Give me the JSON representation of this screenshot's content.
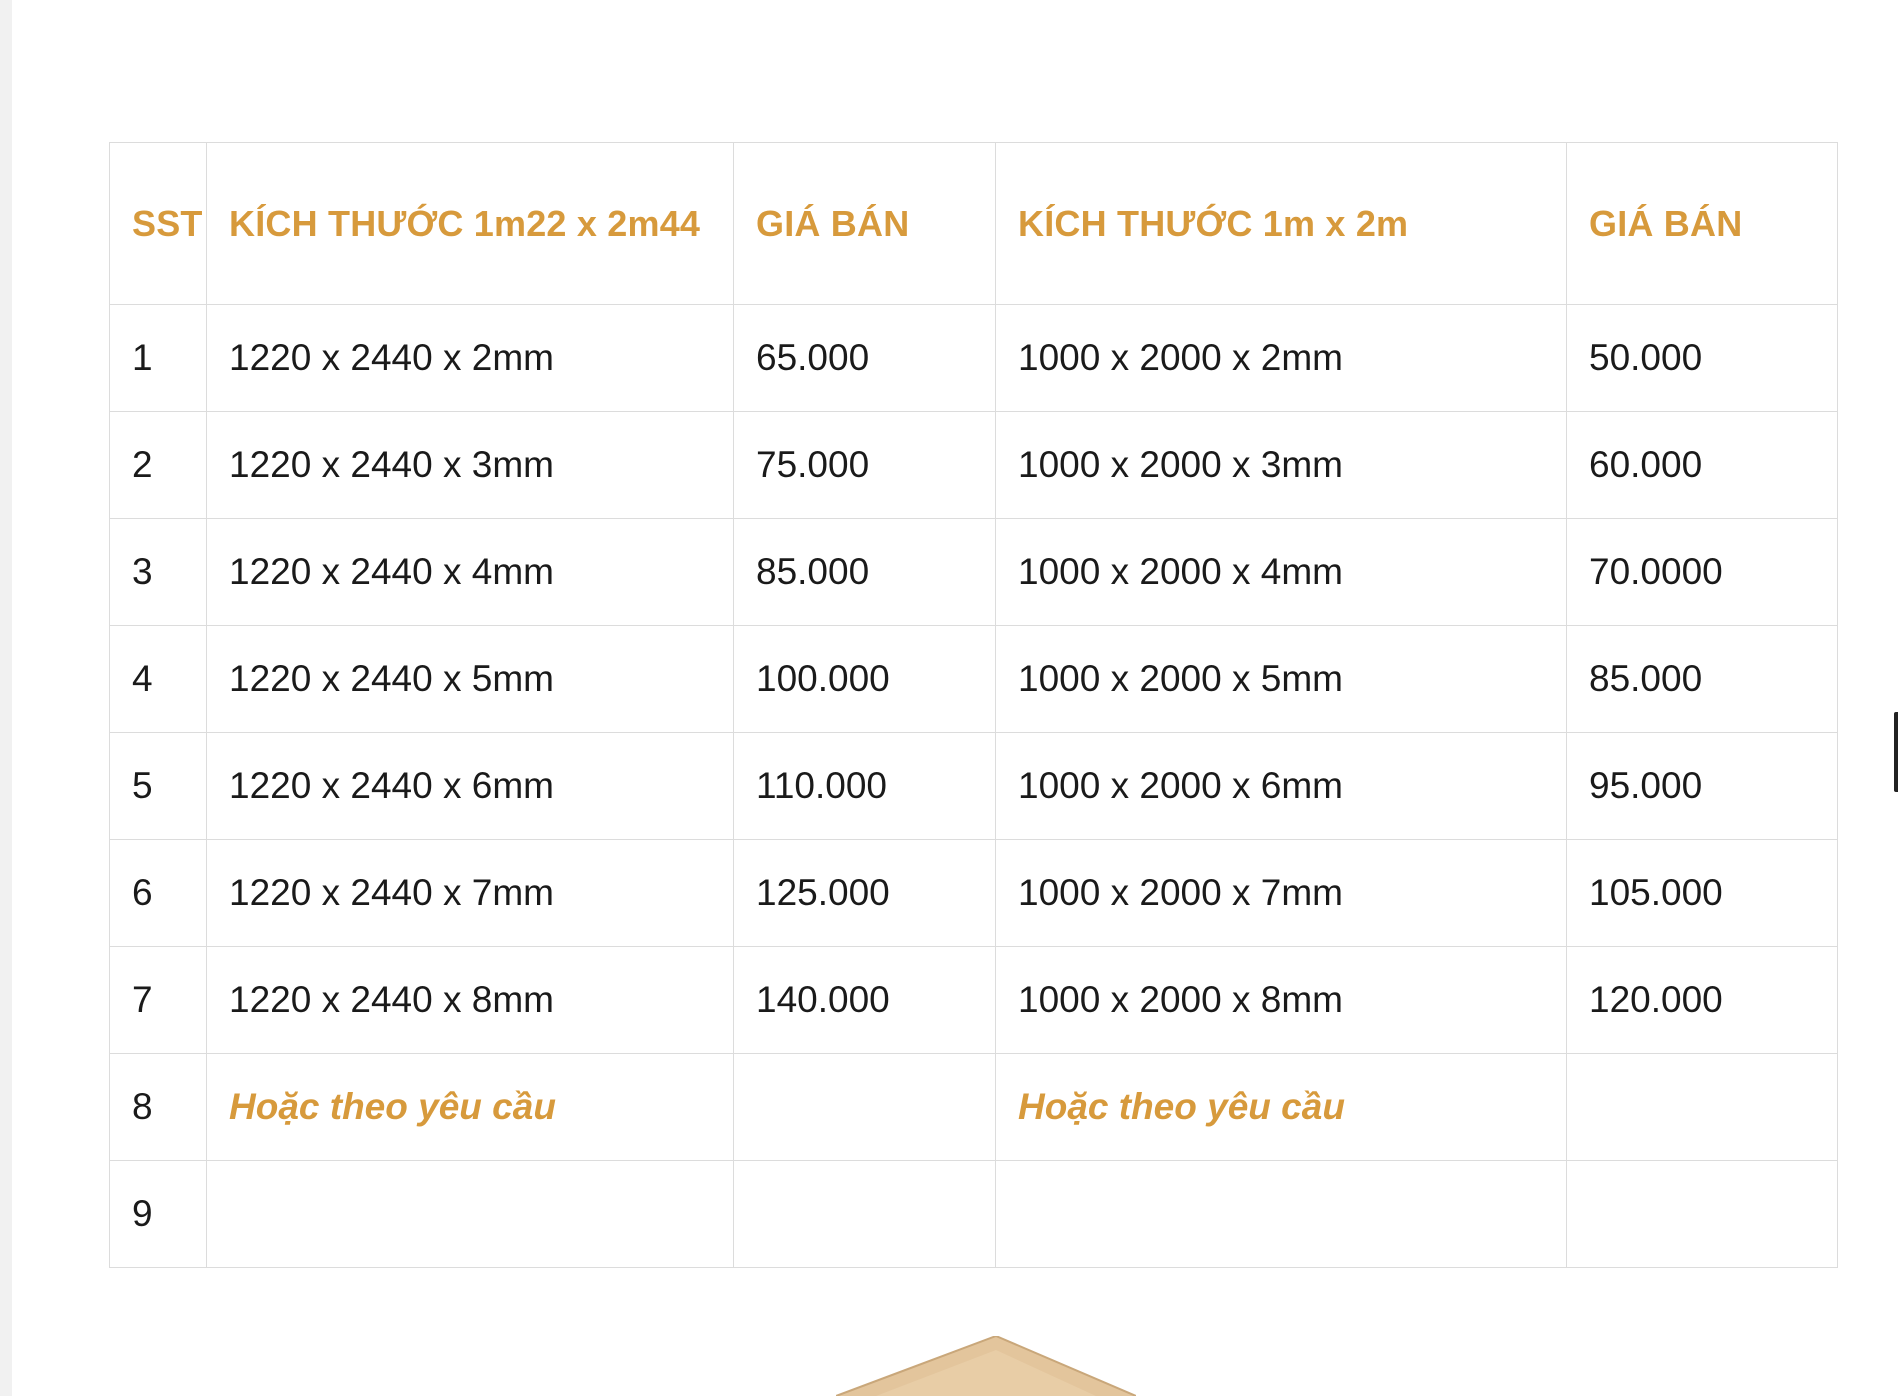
{
  "table": {
    "headers": [
      "SST",
      "KÍCH THƯỚC 1m22 x 2m44",
      "GIÁ BÁN",
      "KÍCH THƯỚC 1m x 2m",
      "GIÁ BÁN"
    ],
    "rows": [
      {
        "stt": "1",
        "size_a": "1220 x 2440 x 2mm",
        "price_a": "65.000",
        "size_b": "1000 x 2000 x 2mm",
        "price_b": "50.000"
      },
      {
        "stt": "2",
        "size_a": "1220 x 2440 x 3mm",
        "price_a": "75.000",
        "size_b": "1000 x 2000 x 3mm",
        "price_b": "60.000"
      },
      {
        "stt": "3",
        "size_a": "1220 x 2440 x 4mm",
        "price_a": "85.000",
        "size_b": "1000 x 2000 x 4mm",
        "price_b": "70.0000"
      },
      {
        "stt": "4",
        "size_a": "1220 x 2440 x 5mm",
        "price_a": "100.000",
        "size_b": "1000 x 2000 x 5mm",
        "price_b": "85.000"
      },
      {
        "stt": "5",
        "size_a": "1220 x 2440 x 6mm",
        "price_a": "110.000",
        "size_b": "1000 x 2000 x 6mm",
        "price_b": "95.000"
      },
      {
        "stt": "6",
        "size_a": "1220 x 2440 x 7mm",
        "price_a": "125.000",
        "size_b": "1000 x 2000 x 7mm",
        "price_b": "105.000"
      },
      {
        "stt": "7",
        "size_a": "1220 x 2440 x 8mm",
        "price_a": "140.000",
        "size_b": "1000 x 2000 x 8mm",
        "price_b": "120.000"
      },
      {
        "stt": "8",
        "size_a": "Hoặc theo yêu cầu",
        "price_a": "",
        "size_b": "Hoặc theo yêu cầu",
        "price_b": ""
      },
      {
        "stt": "9",
        "size_a": "",
        "price_a": "",
        "size_b": "",
        "price_b": ""
      }
    ]
  },
  "colors": {
    "header_text": "#d79a3c",
    "body_text": "#1a1a1a",
    "border": "#dcdcdc",
    "board_wood": "#e3c59c"
  }
}
